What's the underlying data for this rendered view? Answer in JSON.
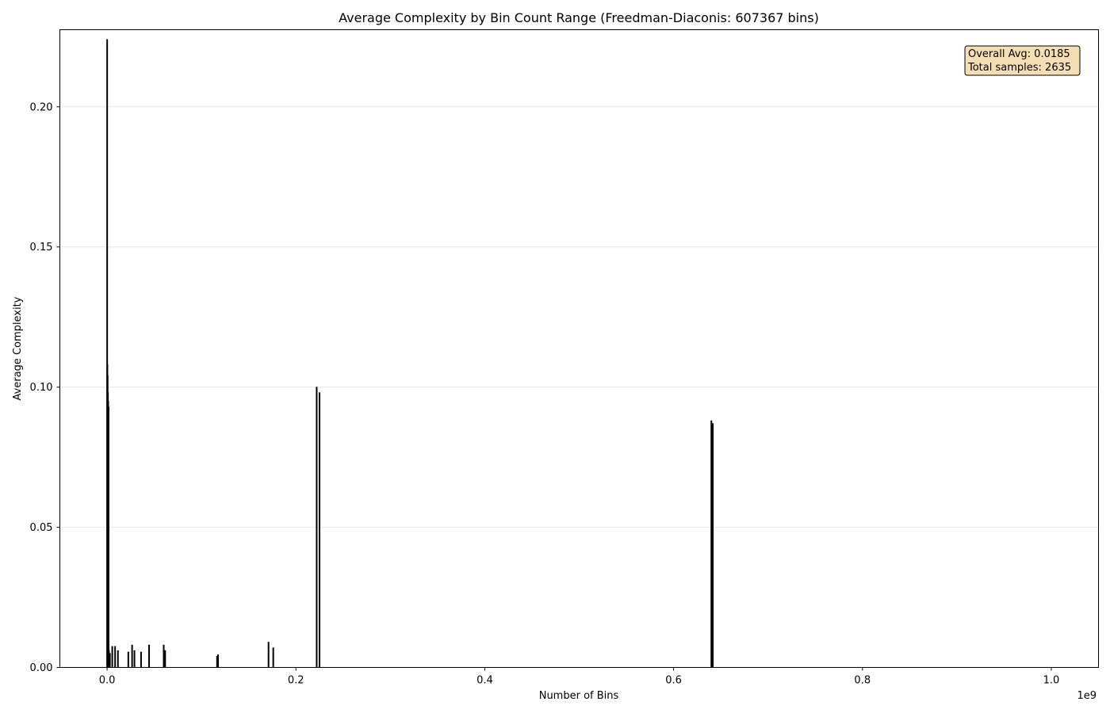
{
  "chart_data": {
    "type": "bar",
    "title": "Average Complexity by Bin Count Range (Freedman-Diaconis: 607367 bins)",
    "xlabel": "Number of Bins",
    "ylabel": "Average Complexity",
    "x_offset_label": "1e9",
    "xlim": [
      -0.05,
      1.05
    ],
    "ylim": [
      0.0,
      0.2275
    ],
    "x_ticks": [
      0.0,
      0.2,
      0.4,
      0.6,
      0.8,
      1.0
    ],
    "x_tick_labels": [
      "0.0",
      "0.2",
      "0.4",
      "0.6",
      "0.8",
      "1.0"
    ],
    "y_ticks": [
      0.0,
      0.05,
      0.1,
      0.15,
      0.2
    ],
    "y_tick_labels": [
      "0.00",
      "0.05",
      "0.10",
      "0.15",
      "0.20"
    ],
    "grid": "y",
    "bar_color": "#000000",
    "stats_box_color": "#f5deb3",
    "bars": [
      {
        "x": 0.0001,
        "y": 0.224
      },
      {
        "x": 0.0003,
        "y": 0.108
      },
      {
        "x": 0.0006,
        "y": 0.104
      },
      {
        "x": 0.0009,
        "y": 0.098
      },
      {
        "x": 0.0012,
        "y": 0.095
      },
      {
        "x": 0.0016,
        "y": 0.093
      },
      {
        "x": 0.002,
        "y": 0.006
      },
      {
        "x": 0.003,
        "y": 0.005
      },
      {
        "x": 0.0055,
        "y": 0.0075
      },
      {
        "x": 0.0085,
        "y": 0.0075
      },
      {
        "x": 0.0115,
        "y": 0.006
      },
      {
        "x": 0.0225,
        "y": 0.0055
      },
      {
        "x": 0.0265,
        "y": 0.008
      },
      {
        "x": 0.029,
        "y": 0.006
      },
      {
        "x": 0.036,
        "y": 0.0055
      },
      {
        "x": 0.0445,
        "y": 0.008
      },
      {
        "x": 0.06,
        "y": 0.008
      },
      {
        "x": 0.0615,
        "y": 0.006
      },
      {
        "x": 0.1165,
        "y": 0.004
      },
      {
        "x": 0.1175,
        "y": 0.0045
      },
      {
        "x": 0.171,
        "y": 0.009
      },
      {
        "x": 0.176,
        "y": 0.007
      },
      {
        "x": 0.222,
        "y": 0.1
      },
      {
        "x": 0.225,
        "y": 0.098
      },
      {
        "x": 0.64,
        "y": 0.088
      },
      {
        "x": 0.6415,
        "y": 0.087
      }
    ],
    "stats_box": {
      "line1": "Overall Avg: 0.0185",
      "line2": "Total samples: 2635"
    }
  }
}
